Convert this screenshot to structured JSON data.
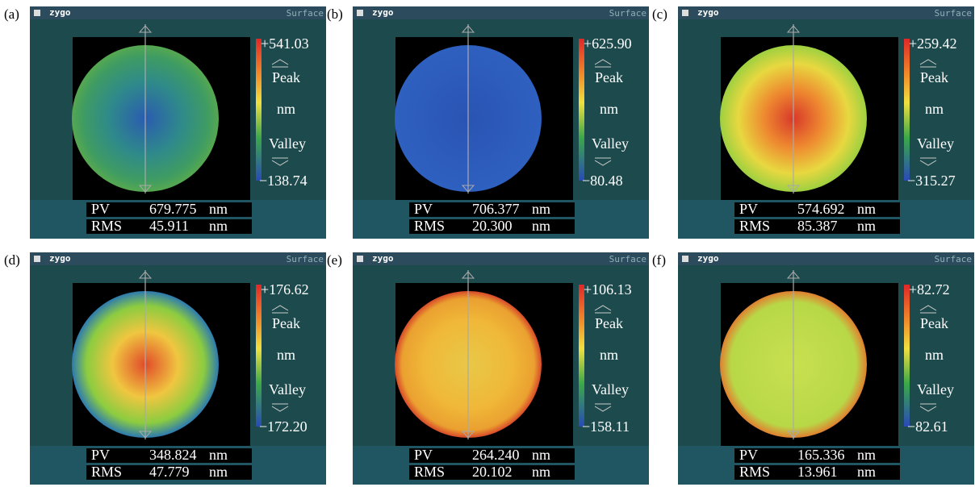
{
  "panels": [
    {
      "label": "(a)",
      "logo": "zygo",
      "title": "Surface",
      "scale": {
        "max": "+541.03",
        "peak": "Peak",
        "unit": "nm",
        "valley": "Valley",
        "min": "−138.74"
      },
      "pv": {
        "label": "PV",
        "value": "679.775",
        "unit": "nm"
      },
      "rms": {
        "label": "RMS",
        "value": "45.911",
        "unit": "nm"
      }
    },
    {
      "label": "(b)",
      "logo": "zygo",
      "title": "Surface",
      "scale": {
        "max": "+625.90",
        "peak": "Peak",
        "unit": "nm",
        "valley": "Valley",
        "min": "−80.48"
      },
      "pv": {
        "label": "PV",
        "value": "706.377",
        "unit": "nm"
      },
      "rms": {
        "label": "RMS",
        "value": "20.300",
        "unit": "nm"
      }
    },
    {
      "label": "(c)",
      "logo": "zygo",
      "title": "Surface",
      "scale": {
        "max": "+259.42",
        "peak": "Peak",
        "unit": "nm",
        "valley": "Valley",
        "min": "−315.27"
      },
      "pv": {
        "label": "PV",
        "value": "574.692",
        "unit": "nm"
      },
      "rms": {
        "label": "RMS",
        "value": "85.387",
        "unit": "nm"
      }
    },
    {
      "label": "(d)",
      "logo": "zygo",
      "title": "Surface",
      "scale": {
        "max": "+176.62",
        "peak": "Peak",
        "unit": "nm",
        "valley": "Valley",
        "min": "−172.20"
      },
      "pv": {
        "label": "PV",
        "value": "348.824",
        "unit": "nm"
      },
      "rms": {
        "label": "RMS",
        "value": "47.779",
        "unit": "nm"
      }
    },
    {
      "label": "(e)",
      "logo": "zygo",
      "title": "Surface",
      "scale": {
        "max": "+106.13",
        "peak": "Peak",
        "unit": "nm",
        "valley": "Valley",
        "min": "−158.11"
      },
      "pv": {
        "label": "PV",
        "value": "264.240",
        "unit": "nm"
      },
      "rms": {
        "label": "RMS",
        "value": "20.102",
        "unit": "nm"
      }
    },
    {
      "label": "(f)",
      "logo": "zygo",
      "title": "Surface",
      "scale": {
        "max": "+82.72",
        "peak": "Peak",
        "unit": "nm",
        "valley": "Valley",
        "min": "−82.61"
      },
      "pv": {
        "label": "PV",
        "value": "165.336",
        "unit": "nm"
      },
      "rms": {
        "label": "RMS",
        "value": "13.961",
        "unit": "nm"
      }
    }
  ]
}
